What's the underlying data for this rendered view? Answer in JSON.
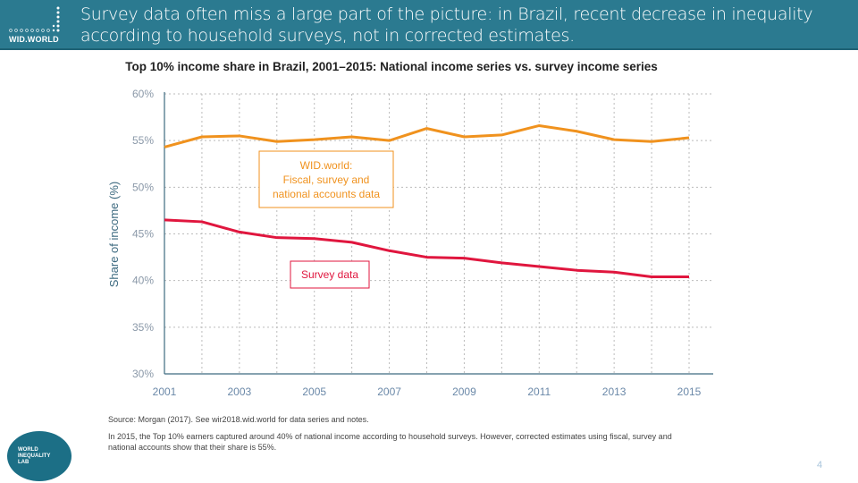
{
  "header": {
    "title": "Survey data often miss a large part of the picture: in Brazil, recent decrease in inequality according to household surveys, not in corrected estimates.",
    "logo": "WID.WORLD"
  },
  "chart_data": {
    "type": "line",
    "title": "Top 10% income share in Brazil, 2001–2015: National income series vs. survey income series",
    "ylabel": "Share of income (%)",
    "xlabel": "",
    "ylim": [
      30,
      60
    ],
    "xlim": [
      2001,
      2015
    ],
    "yticks": [
      "30%",
      "35%",
      "40%",
      "45%",
      "50%",
      "55%",
      "60%"
    ],
    "xticks": [
      "2001",
      "2003",
      "2005",
      "2007",
      "2009",
      "2011",
      "2013",
      "2015"
    ],
    "grid": true,
    "x": [
      2001,
      2002,
      2003,
      2004,
      2005,
      2006,
      2007,
      2008,
      2009,
      2010,
      2011,
      2012,
      2013,
      2014,
      2015
    ],
    "series": [
      {
        "name": "WID.world: Fiscal, survey and national accounts data",
        "label_lines": [
          "WID.world:",
          "Fiscal, survey and",
          "national accounts data"
        ],
        "color": "#f0921e",
        "values": [
          54.3,
          55.4,
          55.5,
          54.9,
          55.1,
          55.4,
          55.0,
          56.3,
          55.4,
          55.6,
          56.6,
          56.0,
          55.1,
          54.9,
          55.3
        ]
      },
      {
        "name": "Survey data",
        "label_lines": [
          "Survey data"
        ],
        "color": "#e0163e",
        "values": [
          46.5,
          46.3,
          45.2,
          44.6,
          44.5,
          44.1,
          43.2,
          42.5,
          42.4,
          41.9,
          41.5,
          41.1,
          40.9,
          40.4,
          40.4
        ]
      }
    ]
  },
  "footer": {
    "source": "Source:  Morgan (2017). See wir2018.wid.world for data series and notes.",
    "note": "In 2015, the Top 10% earners captured around 40% of national income according to household surveys. However, corrected estimates using fiscal, survey and national accounts show that their share is 55%.",
    "lab_logo": "WORLD INEQUALITY LAB",
    "page": "4"
  }
}
